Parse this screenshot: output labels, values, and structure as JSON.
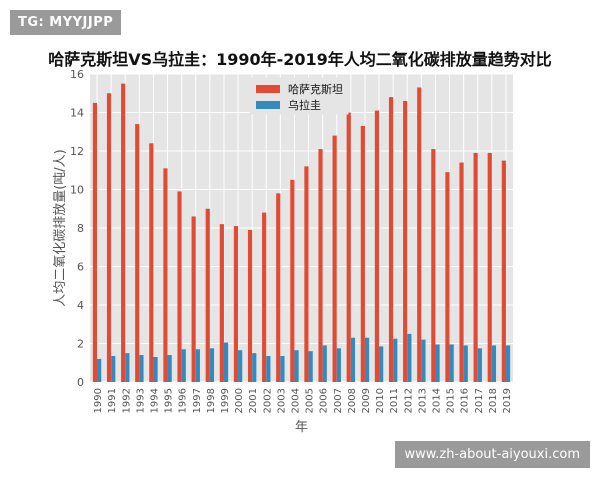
{
  "watermark_top": "TG: MYYJJPP",
  "watermark_bottom": "www.zh-about-aiyouxi.com",
  "chart_data": {
    "type": "bar",
    "title": "哈萨克斯坦VS乌拉圭：1990年-2019年人均二氧化碳排放量趋势对比",
    "xlabel": "年",
    "ylabel": "人均二氧化碳排放量(吨/人)",
    "ylim": [
      0,
      16
    ],
    "yticks": [
      0,
      2,
      4,
      6,
      8,
      10,
      12,
      14,
      16
    ],
    "grid": true,
    "legend_position": "top-center",
    "categories": [
      "1990",
      "1991",
      "1992",
      "1993",
      "1994",
      "1995",
      "1996",
      "1997",
      "1998",
      "1999",
      "2000",
      "2001",
      "2002",
      "2003",
      "2004",
      "2005",
      "2006",
      "2007",
      "2008",
      "2009",
      "2010",
      "2011",
      "2012",
      "2013",
      "2014",
      "2015",
      "2016",
      "2017",
      "2018",
      "2019"
    ],
    "series": [
      {
        "name": "哈萨克斯坦",
        "color": "#e24a33",
        "values": [
          14.5,
          15.0,
          15.5,
          13.4,
          12.4,
          11.1,
          9.9,
          8.6,
          9.0,
          8.2,
          8.1,
          7.9,
          8.8,
          9.8,
          10.5,
          11.2,
          12.1,
          12.8,
          14.0,
          13.3,
          14.1,
          14.8,
          14.6,
          15.3,
          12.1,
          10.9,
          11.4,
          11.9,
          11.9,
          11.5
        ]
      },
      {
        "name": "乌拉圭",
        "color": "#348abd",
        "values": [
          1.2,
          1.35,
          1.5,
          1.4,
          1.3,
          1.4,
          1.7,
          1.7,
          1.75,
          2.05,
          1.65,
          1.5,
          1.35,
          1.35,
          1.65,
          1.6,
          1.9,
          1.75,
          2.3,
          2.3,
          1.85,
          2.25,
          2.5,
          2.2,
          1.95,
          1.95,
          1.9,
          1.75,
          1.9,
          1.9
        ]
      }
    ]
  }
}
